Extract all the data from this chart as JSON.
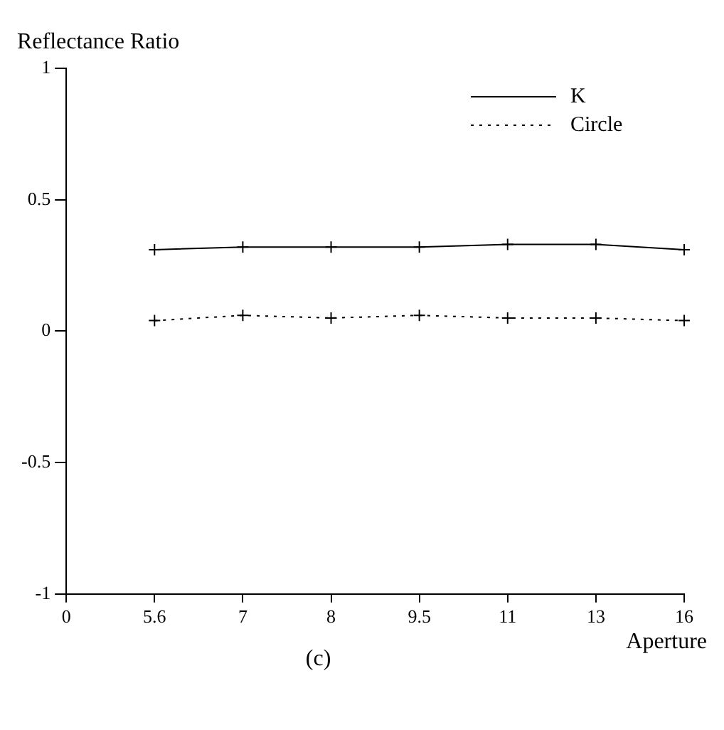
{
  "chart_data": {
    "type": "line",
    "ylabel": "Reflectance Ratio",
    "xlabel": "Aperture",
    "annotations": [
      "(c)"
    ],
    "categories": [
      "0",
      "5.6",
      "7",
      "8",
      "9.5",
      "11",
      "13",
      "16"
    ],
    "series": [
      {
        "name": "K",
        "color": "#000000",
        "line_style": "solid",
        "marker": "cross",
        "values": [
          null,
          0.31,
          0.32,
          0.32,
          0.32,
          0.33,
          0.33,
          0.31
        ]
      },
      {
        "name": "Circle",
        "color": "#000000",
        "line_style": "dotted",
        "marker": "cross",
        "values": [
          null,
          0.04,
          0.06,
          0.05,
          0.06,
          0.05,
          0.05,
          0.04
        ]
      }
    ],
    "ylim": [
      -1,
      1
    ],
    "yticks": [
      -1,
      -0.5,
      0,
      0.5,
      1
    ],
    "grid": false,
    "legend": "top right"
  }
}
